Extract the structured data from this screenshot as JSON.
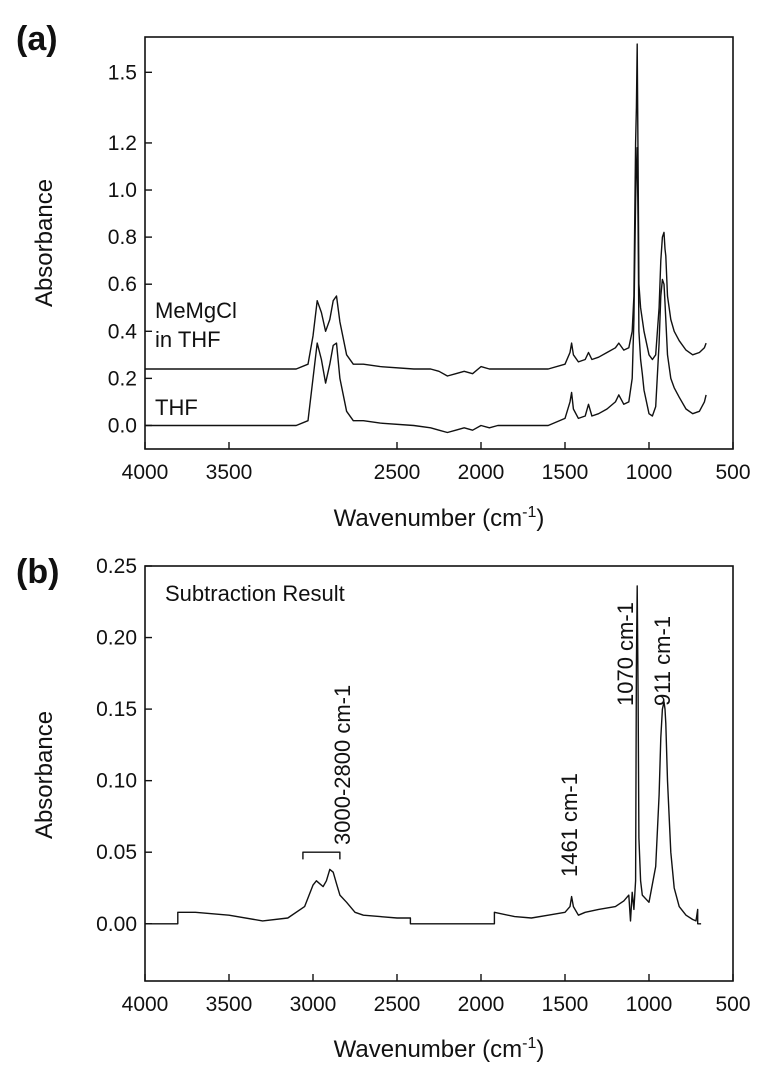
{
  "chart_data": [
    {
      "panel_label": "(a)",
      "type": "line",
      "xlabel": "Wavenumber (cm",
      "xlabel_sup": "-1",
      "xlabel_end": ")",
      "ylabel": "Absorbance",
      "xlim": [
        4000,
        500
      ],
      "ylim": [
        -0.1,
        1.65
      ],
      "x_ticks": [
        4000,
        3500,
        2500,
        2000,
        1500,
        1000,
        500
      ],
      "y_ticks": [
        {
          "value": 0.0,
          "label": "0.0"
        },
        {
          "value": 0.2,
          "label": "0.2"
        },
        {
          "value": 0.4,
          "label": "0.4"
        },
        {
          "value": 0.6,
          "label": "0.6"
        },
        {
          "value": 0.8,
          "label": "0.8"
        },
        {
          "value": 1.0,
          "label": "1.0"
        },
        {
          "value": 1.2,
          "label": "1.2"
        },
        {
          "value": 1.5,
          "label": "1.5"
        }
      ],
      "annotations": {
        "meMgCl_line1": "MeMgCl",
        "meMgCl_line2": "in THF",
        "thf": "THF"
      },
      "series": [
        {
          "name": "MeMgCl in THF",
          "x": [
            4000,
            3100,
            3030,
            3000,
            2975,
            2950,
            2925,
            2900,
            2880,
            2860,
            2840,
            2800,
            2760,
            2700,
            2600,
            2400,
            2300,
            2250,
            2200,
            2150,
            2100,
            2050,
            2000,
            1950,
            1900,
            1800,
            1600,
            1500,
            1470,
            1461,
            1450,
            1420,
            1380,
            1360,
            1340,
            1300,
            1250,
            1200,
            1180,
            1150,
            1120,
            1100,
            1090,
            1080,
            1075,
            1070,
            1065,
            1060,
            1050,
            1040,
            1030,
            1000,
            980,
            960,
            940,
            930,
            920,
            911,
            905,
            900,
            890,
            870,
            850,
            820,
            780,
            740,
            700,
            670,
            660
          ],
          "y": [
            0.24,
            0.24,
            0.26,
            0.38,
            0.53,
            0.48,
            0.4,
            0.45,
            0.53,
            0.55,
            0.44,
            0.3,
            0.26,
            0.26,
            0.25,
            0.24,
            0.24,
            0.23,
            0.21,
            0.22,
            0.23,
            0.22,
            0.25,
            0.24,
            0.24,
            0.24,
            0.24,
            0.26,
            0.31,
            0.35,
            0.3,
            0.27,
            0.28,
            0.31,
            0.28,
            0.29,
            0.31,
            0.33,
            0.35,
            0.32,
            0.33,
            0.4,
            0.55,
            1.2,
            1.35,
            1.62,
            1.1,
            0.6,
            0.5,
            0.45,
            0.4,
            0.3,
            0.28,
            0.3,
            0.5,
            0.7,
            0.8,
            0.82,
            0.75,
            0.72,
            0.55,
            0.45,
            0.4,
            0.36,
            0.32,
            0.3,
            0.31,
            0.33,
            0.35
          ]
        },
        {
          "name": "THF",
          "x": [
            4000,
            3100,
            3030,
            3000,
            2975,
            2950,
            2925,
            2900,
            2880,
            2860,
            2840,
            2800,
            2760,
            2700,
            2600,
            2400,
            2300,
            2250,
            2200,
            2150,
            2100,
            2050,
            2000,
            1950,
            1900,
            1800,
            1600,
            1500,
            1470,
            1461,
            1450,
            1420,
            1380,
            1360,
            1340,
            1300,
            1250,
            1200,
            1180,
            1150,
            1120,
            1100,
            1090,
            1080,
            1075,
            1070,
            1065,
            1060,
            1050,
            1040,
            1030,
            1000,
            980,
            960,
            940,
            930,
            920,
            911,
            905,
            900,
            890,
            870,
            850,
            820,
            780,
            740,
            700,
            670,
            660
          ],
          "y": [
            0.0,
            0.0,
            0.02,
            0.2,
            0.35,
            0.28,
            0.18,
            0.26,
            0.34,
            0.35,
            0.2,
            0.06,
            0.02,
            0.02,
            0.01,
            0.0,
            -0.01,
            -0.02,
            -0.03,
            -0.02,
            -0.01,
            -0.02,
            0.0,
            -0.01,
            0.0,
            0.0,
            0.0,
            0.03,
            0.1,
            0.14,
            0.07,
            0.03,
            0.04,
            0.09,
            0.04,
            0.05,
            0.07,
            0.1,
            0.13,
            0.09,
            0.1,
            0.2,
            0.45,
            0.95,
            1.1,
            1.18,
            0.85,
            0.4,
            0.28,
            0.22,
            0.15,
            0.05,
            0.04,
            0.08,
            0.35,
            0.55,
            0.62,
            0.6,
            0.52,
            0.45,
            0.3,
            0.2,
            0.16,
            0.12,
            0.07,
            0.05,
            0.06,
            0.1,
            0.13
          ]
        }
      ]
    },
    {
      "panel_label": "(b)",
      "type": "line",
      "xlabel": "Wavenumber (cm",
      "xlabel_sup": "-1",
      "xlabel_end": ")",
      "ylabel": "Absorbance",
      "xlim": [
        4000,
        500
      ],
      "ylim": [
        -0.04,
        0.25
      ],
      "x_ticks": [
        4000,
        3500,
        3000,
        2500,
        2000,
        1500,
        1000,
        500
      ],
      "y_ticks": [
        {
          "value": 0.0,
          "label": "0.00"
        },
        {
          "value": 0.05,
          "label": "0.05"
        },
        {
          "value": 0.1,
          "label": "0.10"
        },
        {
          "value": 0.15,
          "label": "0.15"
        },
        {
          "value": 0.2,
          "label": "0.20"
        },
        {
          "value": 0.25,
          "label": "0.25"
        }
      ],
      "title": "Subtraction Result",
      "annotations": {
        "band_3000_2800": "3000-2800 cm-1",
        "band_1461": "1461 cm-1",
        "band_1070": "1070 cm-1",
        "band_911": "911 cm-1"
      },
      "series": [
        {
          "name": "",
          "x": [
            4000,
            3805,
            3805,
            3700,
            3500,
            3300,
            3150,
            3050,
            3000,
            2980,
            2960,
            2940,
            2920,
            2900,
            2880,
            2860,
            2840,
            2800,
            2750,
            2700,
            2600,
            2500,
            2420,
            2420,
            1920,
            1920,
            1800,
            1700,
            1600,
            1500,
            1470,
            1461,
            1450,
            1420,
            1380,
            1300,
            1200,
            1150,
            1120,
            1110,
            1100,
            1090,
            1080,
            1075,
            1070,
            1065,
            1060,
            1050,
            1040,
            1000,
            960,
            940,
            930,
            920,
            911,
            905,
            900,
            890,
            870,
            850,
            820,
            780,
            740,
            720,
            710,
            710,
            690
          ],
          "y": [
            0.0,
            0.0,
            0.008,
            0.008,
            0.006,
            0.002,
            0.004,
            0.012,
            0.027,
            0.03,
            0.028,
            0.026,
            0.03,
            0.038,
            0.036,
            0.028,
            0.02,
            0.015,
            0.008,
            0.006,
            0.005,
            0.004,
            0.004,
            0.0,
            0.0,
            0.008,
            0.005,
            0.004,
            0.006,
            0.008,
            0.012,
            0.019,
            0.012,
            0.006,
            0.008,
            0.01,
            0.012,
            0.016,
            0.02,
            0.002,
            0.022,
            0.01,
            0.03,
            0.18,
            0.236,
            0.16,
            0.06,
            0.03,
            0.02,
            0.015,
            0.04,
            0.09,
            0.13,
            0.15,
            0.155,
            0.15,
            0.14,
            0.1,
            0.05,
            0.025,
            0.012,
            0.006,
            0.003,
            0.002,
            0.01,
            0.0,
            0.0
          ]
        }
      ]
    }
  ]
}
